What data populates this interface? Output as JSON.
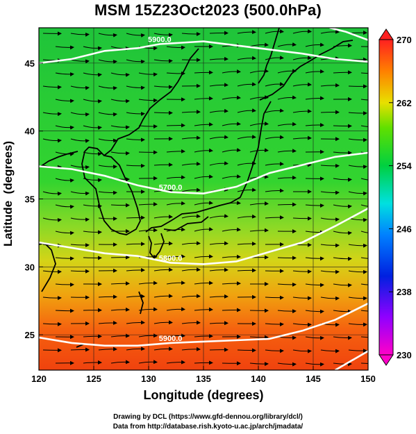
{
  "title": "MSM 15Z23Oct2023 (500.0hPa)",
  "xlabel": "Longitude (degrees)",
  "ylabel": "Latitude  (degrees)",
  "credit_line1": "Drawing by DCL (https://www.gfd-dennou.org/library/dcl/)",
  "credit_line2": "Data from http://database.rish.kyoto-u.ac.jp/arch/jmadata/",
  "chart_data": {
    "type": "heatmap",
    "title": "MSM 15Z23Oct2023 (500.0hPa)",
    "xlabel": "Longitude (degrees)",
    "ylabel": "Latitude  (degrees)",
    "xlim": [
      120,
      150
    ],
    "ylim": [
      22.4,
      47.6
    ],
    "x_ticks": [
      120,
      125,
      130,
      135,
      140,
      145,
      150
    ],
    "y_ticks": [
      25,
      30,
      35,
      40,
      45
    ],
    "colorbar": {
      "min": 230,
      "max": 270,
      "ticks": [
        230,
        238,
        246,
        254,
        262,
        270
      ],
      "colormap": "rainbow (magenta-blue-cyan-green-yellow-orange-red)"
    },
    "field_description": "temperature shading with wind streamlines",
    "contours": [
      {
        "label": "5900.0",
        "points": [
          [
            120,
            45.0
          ],
          [
            123,
            45.3
          ],
          [
            126,
            45.9
          ],
          [
            129,
            46.1
          ],
          [
            131,
            46.4
          ],
          [
            135,
            46.6
          ],
          [
            138,
            46.3
          ],
          [
            141,
            46.0
          ],
          [
            144,
            45.7
          ],
          [
            147,
            45.3
          ],
          [
            150,
            45.1
          ]
        ]
      },
      {
        "label": "5700.0",
        "points": [
          [
            120,
            37.4
          ],
          [
            123,
            37.2
          ],
          [
            126,
            36.7
          ],
          [
            129,
            36.0
          ],
          [
            132,
            35.5
          ],
          [
            135,
            35.4
          ],
          [
            138,
            35.9
          ],
          [
            141,
            36.9
          ],
          [
            144,
            37.5
          ],
          [
            147,
            38.1
          ],
          [
            150,
            38.4
          ]
        ]
      },
      {
        "label": "5800.0",
        "points": [
          [
            120,
            31.8
          ],
          [
            123,
            31.4
          ],
          [
            126,
            31.0
          ],
          [
            129,
            30.8
          ],
          [
            132,
            30.3
          ],
          [
            135,
            30.2
          ],
          [
            138,
            30.4
          ],
          [
            141,
            31.1
          ],
          [
            144,
            31.8
          ],
          [
            147,
            33.0
          ],
          [
            150,
            34.3
          ]
        ]
      },
      {
        "label": "5900.0",
        "points": [
          [
            120,
            24.8
          ],
          [
            123,
            24.4
          ],
          [
            126,
            24.2
          ],
          [
            129,
            24.2
          ],
          [
            132,
            24.4
          ],
          [
            135,
            24.5
          ],
          [
            138,
            24.6
          ],
          [
            141,
            24.7
          ],
          [
            144,
            25.3
          ],
          [
            147,
            26.1
          ],
          [
            150,
            27.3
          ]
        ]
      },
      {
        "label": "",
        "points": [
          [
            147,
            22.4
          ],
          [
            148.5,
            23.1
          ],
          [
            150,
            23.8
          ]
        ]
      },
      {
        "label": "",
        "points": [
          [
            146.5,
            47.6
          ],
          [
            148,
            47.3
          ],
          [
            150,
            46.7
          ]
        ]
      }
    ]
  }
}
